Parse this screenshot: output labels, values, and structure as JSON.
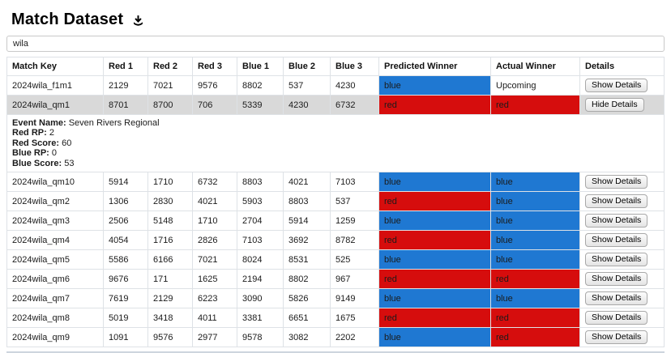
{
  "page": {
    "title": "Match Dataset"
  },
  "search": {
    "value": "wila"
  },
  "colors": {
    "blue": "#1f78d2",
    "red": "#d60d0d",
    "selected_row": "#d9d9d9"
  },
  "table": {
    "headers": [
      "Match Key",
      "Red 1",
      "Red 2",
      "Red 3",
      "Blue 1",
      "Blue 2",
      "Blue 3",
      "Predicted Winner",
      "Actual Winner",
      "Details"
    ],
    "rows": [
      {
        "match_key": "2024wila_f1m1",
        "scores": [
          "2129",
          "7021",
          "9576",
          "8802",
          "537",
          "4230"
        ],
        "predicted": {
          "label": "blue",
          "color": "blue"
        },
        "actual": {
          "label": "Upcoming",
          "color": "none"
        },
        "details_button": "Show Details",
        "selected": false
      },
      {
        "match_key": "2024wila_qm1",
        "scores": [
          "8701",
          "8700",
          "706",
          "5339",
          "4230",
          "6732"
        ],
        "predicted": {
          "label": "red",
          "color": "red"
        },
        "actual": {
          "label": "red",
          "color": "red"
        },
        "details_button": "Hide Details",
        "selected": true,
        "expanded": {
          "fields": [
            {
              "label": "Event Name:",
              "value": "Seven Rivers Regional"
            },
            {
              "label": "Red RP:",
              "value": "2"
            },
            {
              "label": "Red Score:",
              "value": "60"
            },
            {
              "label": "Blue RP:",
              "value": "0"
            },
            {
              "label": "Blue Score:",
              "value": "53"
            }
          ]
        }
      },
      {
        "match_key": "2024wila_qm10",
        "scores": [
          "5914",
          "1710",
          "6732",
          "8803",
          "4021",
          "7103"
        ],
        "predicted": {
          "label": "blue",
          "color": "blue"
        },
        "actual": {
          "label": "blue",
          "color": "blue"
        },
        "details_button": "Show Details",
        "selected": false
      },
      {
        "match_key": "2024wila_qm2",
        "scores": [
          "1306",
          "2830",
          "4021",
          "5903",
          "8803",
          "537"
        ],
        "predicted": {
          "label": "red",
          "color": "red"
        },
        "actual": {
          "label": "blue",
          "color": "blue"
        },
        "details_button": "Show Details",
        "selected": false
      },
      {
        "match_key": "2024wila_qm3",
        "scores": [
          "2506",
          "5148",
          "1710",
          "2704",
          "5914",
          "1259"
        ],
        "predicted": {
          "label": "blue",
          "color": "blue"
        },
        "actual": {
          "label": "blue",
          "color": "blue"
        },
        "details_button": "Show Details",
        "selected": false
      },
      {
        "match_key": "2024wila_qm4",
        "scores": [
          "4054",
          "1716",
          "2826",
          "7103",
          "3692",
          "8782"
        ],
        "predicted": {
          "label": "red",
          "color": "red"
        },
        "actual": {
          "label": "blue",
          "color": "blue"
        },
        "details_button": "Show Details",
        "selected": false
      },
      {
        "match_key": "2024wila_qm5",
        "scores": [
          "5586",
          "6166",
          "7021",
          "8024",
          "8531",
          "525"
        ],
        "predicted": {
          "label": "blue",
          "color": "blue"
        },
        "actual": {
          "label": "blue",
          "color": "blue"
        },
        "details_button": "Show Details",
        "selected": false
      },
      {
        "match_key": "2024wila_qm6",
        "scores": [
          "9676",
          "171",
          "1625",
          "2194",
          "8802",
          "967"
        ],
        "predicted": {
          "label": "red",
          "color": "red"
        },
        "actual": {
          "label": "red",
          "color": "red"
        },
        "details_button": "Show Details",
        "selected": false
      },
      {
        "match_key": "2024wila_qm7",
        "scores": [
          "7619",
          "2129",
          "6223",
          "3090",
          "5826",
          "9149"
        ],
        "predicted": {
          "label": "blue",
          "color": "blue"
        },
        "actual": {
          "label": "blue",
          "color": "blue"
        },
        "details_button": "Show Details",
        "selected": false
      },
      {
        "match_key": "2024wila_qm8",
        "scores": [
          "5019",
          "3418",
          "4011",
          "3381",
          "6651",
          "1675"
        ],
        "predicted": {
          "label": "red",
          "color": "red"
        },
        "actual": {
          "label": "red",
          "color": "red"
        },
        "details_button": "Show Details",
        "selected": false
      },
      {
        "match_key": "2024wila_qm9",
        "scores": [
          "1091",
          "9576",
          "2977",
          "9578",
          "3082",
          "2202"
        ],
        "predicted": {
          "label": "blue",
          "color": "blue"
        },
        "actual": {
          "label": "red",
          "color": "red"
        },
        "details_button": "Show Details",
        "selected": false
      }
    ]
  }
}
